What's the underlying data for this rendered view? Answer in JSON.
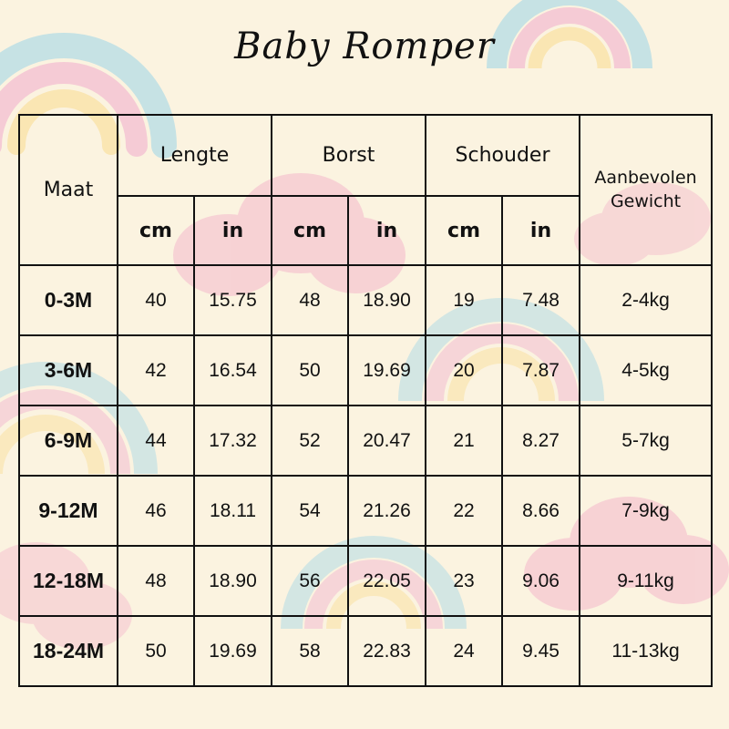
{
  "title": "Baby Romper",
  "headers": {
    "size": "Maat",
    "groups": [
      "Lengte",
      "Borst",
      "Schouder"
    ],
    "weight_line1": "Aanbevolen",
    "weight_line2": "Gewicht",
    "units": [
      "cm",
      "in",
      "cm",
      "in",
      "cm",
      "in"
    ]
  },
  "rows": [
    {
      "size": "0-3M",
      "length_cm": "40",
      "length_in": "15.75",
      "chest_cm": "48",
      "chest_in": "18.90",
      "shoulder_cm": "19",
      "shoulder_in": "7.48",
      "weight": "2-4kg"
    },
    {
      "size": "3-6M",
      "length_cm": "42",
      "length_in": "16.54",
      "chest_cm": "50",
      "chest_in": "19.69",
      "shoulder_cm": "20",
      "shoulder_in": "7.87",
      "weight": "4-5kg"
    },
    {
      "size": "6-9M",
      "length_cm": "44",
      "length_in": "17.32",
      "chest_cm": "52",
      "chest_in": "20.47",
      "shoulder_cm": "21",
      "shoulder_in": "8.27",
      "weight": "5-7kg"
    },
    {
      "size": "9-12M",
      "length_cm": "46",
      "length_in": "18.11",
      "chest_cm": "54",
      "chest_in": "21.26",
      "shoulder_cm": "22",
      "shoulder_in": "8.66",
      "weight": "7-9kg"
    },
    {
      "size": "12-18M",
      "length_cm": "48",
      "length_in": "18.90",
      "chest_cm": "56",
      "chest_in": "22.05",
      "shoulder_cm": "23",
      "shoulder_in": "9.06",
      "weight": "9-11kg"
    },
    {
      "size": "18-24M",
      "length_cm": "50",
      "length_in": "19.69",
      "chest_cm": "58",
      "chest_in": "22.83",
      "shoulder_cm": "24",
      "shoulder_in": "9.45",
      "weight": "11-13kg"
    }
  ],
  "colors": {
    "background": "#fbf3e0",
    "rainbow_blue": "#b9dfe6",
    "rainbow_pink": "#f4c2d3",
    "rainbow_yellow": "#fae3a8",
    "cloud_pink": "#f4b8cc"
  }
}
